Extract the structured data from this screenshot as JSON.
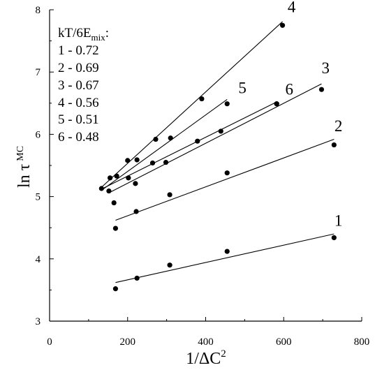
{
  "chart_data": {
    "type": "scatter",
    "title": "",
    "xlabel_main": "1/ΔC",
    "xlabel_sup": "2",
    "ylabel_main": "ln τ",
    "ylabel_sup": "MC",
    "xlim": [
      0,
      800
    ],
    "ylim": [
      3,
      8
    ],
    "x_ticks": [
      0,
      200,
      400,
      600,
      800
    ],
    "y_ticks": [
      3,
      4,
      5,
      6,
      7,
      8
    ],
    "grid": false,
    "legend": {
      "title_main": "kT/6E",
      "title_sub": "mix",
      "title_suffix": ":",
      "entries": [
        "1 - 0.72",
        "2 - 0.69",
        "3 - 0.67",
        "4 - 0.56",
        "5 - 0.51",
        "6 - 0.48"
      ],
      "placement": "top-left"
    },
    "series": [
      {
        "name": "1",
        "points": [
          [
            169,
            3.52
          ],
          [
            224,
            3.69
          ],
          [
            308,
            3.9
          ],
          [
            455,
            4.12
          ],
          [
            729,
            4.34
          ]
        ],
        "fit": [
          [
            169,
            3.62
          ],
          [
            729,
            4.4
          ]
        ],
        "label_at": [
          730,
          4.53
        ]
      },
      {
        "name": "2",
        "points": [
          [
            165,
            4.9
          ],
          [
            169,
            4.49
          ],
          [
            222,
            4.76
          ],
          [
            220,
            5.21
          ],
          [
            308,
            5.03
          ],
          [
            455,
            5.38
          ],
          [
            729,
            5.83
          ]
        ],
        "fit": [
          [
            169,
            4.62
          ],
          [
            729,
            5.92
          ]
        ],
        "label_at": [
          730,
          6.05
        ]
      },
      {
        "name": "3",
        "points": [
          [
            152,
            5.09
          ],
          [
            202,
            5.3
          ],
          [
            264,
            5.54
          ],
          [
            298,
            5.55
          ],
          [
            379,
            5.89
          ],
          [
            439,
            6.05
          ],
          [
            582,
            6.49
          ],
          [
            697,
            6.72
          ]
        ],
        "fit": [
          [
            152,
            5.06
          ],
          [
            697,
            6.81
          ]
        ],
        "label_at": [
          697,
          6.98
        ]
      },
      {
        "name": "4",
        "points": [
          [
            155,
            5.3
          ],
          [
            200,
            5.58
          ],
          [
            272,
            5.92
          ],
          [
            390,
            6.57
          ],
          [
            597,
            7.75
          ]
        ],
        "fit": [
          [
            133,
            5.15
          ],
          [
            597,
            7.81
          ]
        ],
        "label_at": [
          610,
          7.96
        ]
      },
      {
        "name": "5",
        "points": [
          [
            133,
            5.13
          ],
          [
            172,
            5.33
          ],
          [
            310,
            5.94
          ],
          [
            455,
            6.49
          ]
        ],
        "fit": [
          [
            133,
            5.1
          ],
          [
            455,
            6.56
          ]
        ],
        "label_at": [
          484,
          6.66
        ]
      },
      {
        "name": "6",
        "points": [
          [
            224,
            5.59
          ],
          [
            582,
            6.49
          ]
        ],
        "fit": [
          [
            133,
            5.12
          ],
          [
            582,
            6.52
          ]
        ],
        "label_at": [
          604,
          6.64
        ]
      }
    ]
  }
}
